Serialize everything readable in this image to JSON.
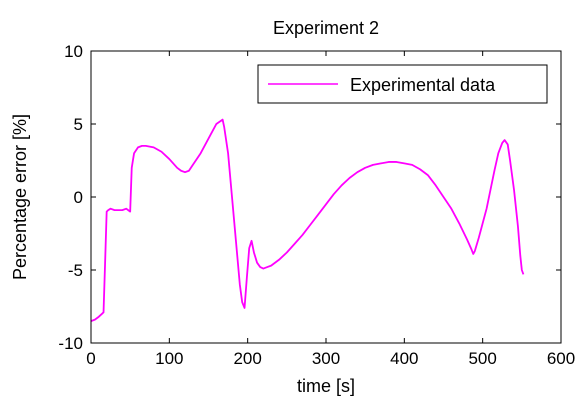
{
  "chart_data": {
    "type": "line",
    "title": "Experiment 2",
    "xlabel": "time [s]",
    "ylabel": "Percentage error [%]",
    "xlim": [
      0,
      600
    ],
    "ylim": [
      -10,
      10
    ],
    "xticks": [
      0,
      100,
      200,
      300,
      400,
      500,
      600
    ],
    "yticks": [
      -10,
      -5,
      0,
      5,
      10
    ],
    "grid": false,
    "legend_position": "top-right",
    "series": [
      {
        "name": "Experimental data",
        "color": "#FF00FF",
        "x": [
          0,
          5,
          10,
          14,
          16,
          18,
          20,
          22,
          25,
          30,
          40,
          45,
          50,
          52,
          55,
          60,
          65,
          70,
          80,
          90,
          100,
          110,
          115,
          120,
          125,
          130,
          140,
          150,
          160,
          168,
          170,
          175,
          180,
          185,
          190,
          193,
          196,
          199,
          202,
          205,
          208,
          212,
          216,
          220,
          225,
          230,
          240,
          250,
          260,
          270,
          280,
          290,
          300,
          310,
          320,
          330,
          340,
          350,
          360,
          370,
          380,
          390,
          400,
          410,
          420,
          430,
          440,
          450,
          460,
          470,
          480,
          485,
          488,
          490,
          495,
          500,
          505,
          510,
          515,
          520,
          525,
          528,
          532,
          535,
          540,
          545,
          548,
          550,
          552
        ],
        "y": [
          -8.5,
          -8.4,
          -8.2,
          -8.0,
          -7.9,
          -4.5,
          -1.0,
          -0.9,
          -0.8,
          -0.9,
          -0.9,
          -0.8,
          -1.0,
          2.0,
          3.0,
          3.4,
          3.5,
          3.5,
          3.4,
          3.1,
          2.6,
          2.0,
          1.8,
          1.7,
          1.8,
          2.2,
          3.0,
          4.0,
          5.0,
          5.3,
          4.8,
          3.0,
          0.0,
          -3.0,
          -6.0,
          -7.2,
          -7.6,
          -5.5,
          -3.5,
          -3.0,
          -3.8,
          -4.5,
          -4.8,
          -4.9,
          -4.8,
          -4.7,
          -4.3,
          -3.8,
          -3.2,
          -2.6,
          -1.9,
          -1.2,
          -0.5,
          0.2,
          0.8,
          1.3,
          1.7,
          2.0,
          2.2,
          2.3,
          2.4,
          2.4,
          2.3,
          2.2,
          1.9,
          1.5,
          0.8,
          0.0,
          -0.8,
          -1.8,
          -2.9,
          -3.5,
          -3.9,
          -3.7,
          -2.8,
          -1.8,
          -0.8,
          0.5,
          1.8,
          3.0,
          3.7,
          3.9,
          3.6,
          2.5,
          0.5,
          -2.0,
          -4.0,
          -5.0,
          -5.3
        ]
      }
    ]
  }
}
